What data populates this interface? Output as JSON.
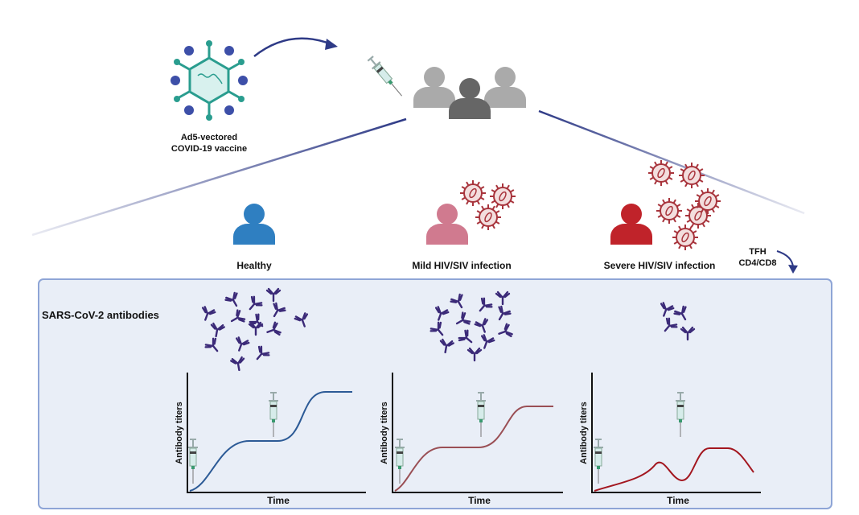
{
  "vaccine": {
    "label_line1": "Ad5-vectored",
    "label_line2": "COVID-19 vaccine"
  },
  "groups": [
    {
      "label": "Healthy",
      "color": "#2f7fc1",
      "curve_color": "#2c5a96"
    },
    {
      "label": "Mild HIV/SIV infection",
      "color": "#d07a8f",
      "curve_color": "#9a4f55"
    },
    {
      "label": "Severe HIV/SIV infection",
      "color": "#c0232a",
      "curve_color": "#a3161f"
    }
  ],
  "tcells": {
    "line1": "TFH",
    "line2": "CD4/CD8"
  },
  "antibodies_label": "SARS-CoV-2 antibodies",
  "chart": {
    "ylabel": "Antibody titers",
    "xlabel": "Time"
  },
  "colors": {
    "panel_fill": "#e9eef7",
    "panel_border": "#8ea5d6",
    "arrow": "#2e3a86",
    "antibody": "#3b2a78",
    "virus": "#a8343c"
  }
}
